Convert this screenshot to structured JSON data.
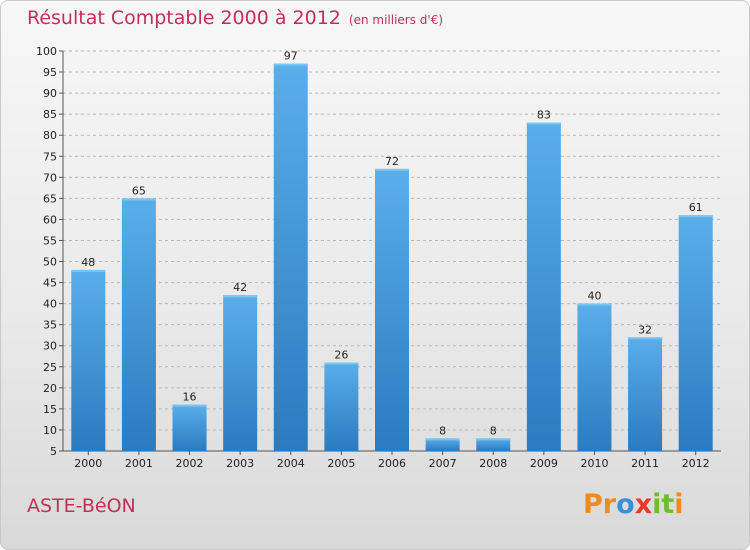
{
  "chart_data": {
    "type": "bar",
    "title": "Résultat Comptable 2000 à 2012",
    "unit_label": "(en milliers d'€)",
    "categories": [
      "2000",
      "2001",
      "2002",
      "2003",
      "2004",
      "2005",
      "2006",
      "2007",
      "2008",
      "2009",
      "2010",
      "2011",
      "2012"
    ],
    "values": [
      48,
      65,
      16,
      42,
      97,
      26,
      72,
      8,
      8,
      83,
      40,
      32,
      61
    ],
    "ylim": [
      5,
      100
    ],
    "yticks": [
      5,
      10,
      15,
      20,
      25,
      30,
      35,
      40,
      45,
      50,
      55,
      60,
      65,
      70,
      75,
      80,
      85,
      90,
      95,
      100
    ],
    "grid": "horizontal dashed",
    "bar_color": "#4a9ee0"
  },
  "place_name": "ASTE-BéON",
  "logo": {
    "letters": [
      "P",
      "r",
      "o",
      "x",
      "i",
      "t",
      "i"
    ],
    "colors": [
      "#f08a1c",
      "#f08a1c",
      "#3a8fd6",
      "#e83a2a",
      "#6cbe2c",
      "#6cbe2c",
      "#f08a1c"
    ]
  }
}
